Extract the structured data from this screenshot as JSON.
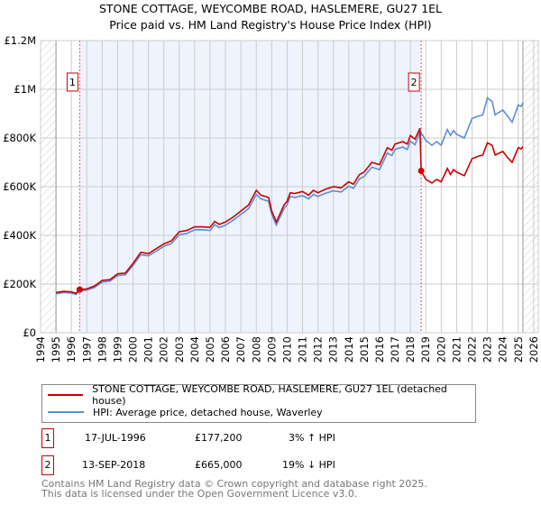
{
  "title_line1": "STONE COTTAGE, WEYCOMBE ROAD, HASLEMERE, GU27 1EL",
  "title_line2": "Price paid vs. HM Land Registry's House Price Index (HPI)",
  "colors": {
    "property": "#cc0000",
    "hpi": "#5b8fd4",
    "shade": "#eef3fd"
  },
  "legend": {
    "property": "STONE COTTAGE, WEYCOMBE ROAD, HASLEMERE, GU27 1EL (detached house)",
    "hpi": "HPI: Average price, detached house, Waverley"
  },
  "sales": [
    {
      "id": "1",
      "date": "17-JUL-1996",
      "price": "£177,200",
      "hpi_diff": "3% ↑ HPI"
    },
    {
      "id": "2",
      "date": "13-SEP-2018",
      "price": "£665,000",
      "hpi_diff": "19% ↓ HPI"
    }
  ],
  "footer": {
    "line1": "Contains HM Land Registry data © Crown copyright and database right 2025.",
    "line2": "This data is licensed under the Open Government Licence v3.0."
  },
  "chart_data": {
    "type": "line",
    "xlim": [
      1994,
      2026.3
    ],
    "ylim": [
      0,
      1200000
    ],
    "x_ticks": [
      "1994",
      "1995",
      "1996",
      "1997",
      "1998",
      "1999",
      "2000",
      "2001",
      "2002",
      "2003",
      "2004",
      "2005",
      "2006",
      "2007",
      "2008",
      "2009",
      "2010",
      "2011",
      "2012",
      "2013",
      "2014",
      "2015",
      "2016",
      "2017",
      "2018",
      "2019",
      "2020",
      "2021",
      "2022",
      "2023",
      "2024",
      "2025",
      "2026"
    ],
    "y_ticks": [
      {
        "v": 0,
        "label": "£0"
      },
      {
        "v": 200000,
        "label": "£200K"
      },
      {
        "v": 400000,
        "label": "£400K"
      },
      {
        "v": 600000,
        "label": "£600K"
      },
      {
        "v": 800000,
        "label": "£800K"
      },
      {
        "v": 1000000,
        "label": "£1M"
      },
      {
        "v": 1200000,
        "label": "£1.2M"
      }
    ],
    "data_range": [
      1995.0,
      2025.3
    ],
    "shaded_range": [
      1996.54,
      2018.7
    ],
    "series": [
      {
        "name": "property",
        "points": [
          [
            1995.0,
            165000
          ],
          [
            1995.5,
            170000
          ],
          [
            1996.0,
            168000
          ],
          [
            1996.3,
            162000
          ],
          [
            1996.54,
            177200
          ],
          [
            1997.0,
            180000
          ],
          [
            1997.5,
            192000
          ],
          [
            1998.0,
            215000
          ],
          [
            1998.5,
            218000
          ],
          [
            1999.0,
            242000
          ],
          [
            1999.5,
            245000
          ],
          [
            2000.0,
            285000
          ],
          [
            2000.5,
            330000
          ],
          [
            2001.0,
            325000
          ],
          [
            2001.5,
            345000
          ],
          [
            2002.0,
            365000
          ],
          [
            2002.5,
            378000
          ],
          [
            2003.0,
            415000
          ],
          [
            2003.5,
            420000
          ],
          [
            2004.0,
            435000
          ],
          [
            2004.5,
            435000
          ],
          [
            2005.0,
            433000
          ],
          [
            2005.3,
            457000
          ],
          [
            2005.6,
            445000
          ],
          [
            2006.0,
            455000
          ],
          [
            2006.5,
            475000
          ],
          [
            2007.0,
            500000
          ],
          [
            2007.5,
            525000
          ],
          [
            2008.0,
            585000
          ],
          [
            2008.3,
            565000
          ],
          [
            2008.8,
            555000
          ],
          [
            2009.0,
            500000
          ],
          [
            2009.3,
            455000
          ],
          [
            2009.8,
            525000
          ],
          [
            2010.0,
            540000
          ],
          [
            2010.2,
            575000
          ],
          [
            2010.5,
            572000
          ],
          [
            2011.0,
            580000
          ],
          [
            2011.4,
            565000
          ],
          [
            2011.7,
            585000
          ],
          [
            2012.0,
            575000
          ],
          [
            2012.5,
            590000
          ],
          [
            2013.0,
            600000
          ],
          [
            2013.5,
            595000
          ],
          [
            2014.0,
            620000
          ],
          [
            2014.3,
            610000
          ],
          [
            2014.7,
            650000
          ],
          [
            2015.0,
            660000
          ],
          [
            2015.5,
            700000
          ],
          [
            2016.0,
            690000
          ],
          [
            2016.5,
            760000
          ],
          [
            2016.8,
            750000
          ],
          [
            2017.0,
            775000
          ],
          [
            2017.5,
            785000
          ],
          [
            2017.8,
            775000
          ],
          [
            2018.0,
            810000
          ],
          [
            2018.3,
            795000
          ],
          [
            2018.62,
            840000
          ],
          [
            2018.7,
            665000
          ],
          [
            2019.0,
            630000
          ],
          [
            2019.4,
            615000
          ],
          [
            2019.7,
            630000
          ],
          [
            2020.0,
            620000
          ],
          [
            2020.4,
            675000
          ],
          [
            2020.6,
            650000
          ],
          [
            2020.8,
            670000
          ],
          [
            2021.0,
            660000
          ],
          [
            2021.5,
            645000
          ],
          [
            2022.0,
            715000
          ],
          [
            2022.4,
            725000
          ],
          [
            2022.7,
            730000
          ],
          [
            2023.0,
            780000
          ],
          [
            2023.3,
            770000
          ],
          [
            2023.5,
            730000
          ],
          [
            2024.0,
            745000
          ],
          [
            2024.3,
            720000
          ],
          [
            2024.6,
            700000
          ],
          [
            2025.0,
            760000
          ],
          [
            2025.2,
            755000
          ],
          [
            2025.3,
            765000
          ]
        ]
      },
      {
        "name": "hpi",
        "points": [
          [
            1995.0,
            160000
          ],
          [
            1995.5,
            165000
          ],
          [
            1996.0,
            163000
          ],
          [
            1996.3,
            157000
          ],
          [
            1996.54,
            172000
          ],
          [
            1997.0,
            175000
          ],
          [
            1997.5,
            186000
          ],
          [
            1998.0,
            208000
          ],
          [
            1998.5,
            212000
          ],
          [
            1999.0,
            235000
          ],
          [
            1999.5,
            238000
          ],
          [
            2000.0,
            277000
          ],
          [
            2000.5,
            320000
          ],
          [
            2001.0,
            316000
          ],
          [
            2001.5,
            335000
          ],
          [
            2002.0,
            355000
          ],
          [
            2002.5,
            367000
          ],
          [
            2003.0,
            403000
          ],
          [
            2003.5,
            408000
          ],
          [
            2004.0,
            423000
          ],
          [
            2004.5,
            423000
          ],
          [
            2005.0,
            420000
          ],
          [
            2005.3,
            444000
          ],
          [
            2005.6,
            432000
          ],
          [
            2006.0,
            442000
          ],
          [
            2006.5,
            462000
          ],
          [
            2007.0,
            486000
          ],
          [
            2007.5,
            510000
          ],
          [
            2008.0,
            568000
          ],
          [
            2008.3,
            550000
          ],
          [
            2008.8,
            540000
          ],
          [
            2009.0,
            486000
          ],
          [
            2009.3,
            442000
          ],
          [
            2009.8,
            510000
          ],
          [
            2010.0,
            525000
          ],
          [
            2010.2,
            560000
          ],
          [
            2010.5,
            556000
          ],
          [
            2011.0,
            563000
          ],
          [
            2011.4,
            550000
          ],
          [
            2011.7,
            568000
          ],
          [
            2012.0,
            560000
          ],
          [
            2012.5,
            573000
          ],
          [
            2013.0,
            583000
          ],
          [
            2013.5,
            578000
          ],
          [
            2014.0,
            602000
          ],
          [
            2014.3,
            593000
          ],
          [
            2014.7,
            632000
          ],
          [
            2015.0,
            642000
          ],
          [
            2015.5,
            680000
          ],
          [
            2016.0,
            670000
          ],
          [
            2016.5,
            738000
          ],
          [
            2016.8,
            728000
          ],
          [
            2017.0,
            753000
          ],
          [
            2017.5,
            763000
          ],
          [
            2017.8,
            753000
          ],
          [
            2018.0,
            787000
          ],
          [
            2018.3,
            772000
          ],
          [
            2018.62,
            825000
          ],
          [
            2018.7,
            822000
          ],
          [
            2019.0,
            790000
          ],
          [
            2019.4,
            770000
          ],
          [
            2019.7,
            785000
          ],
          [
            2020.0,
            770000
          ],
          [
            2020.4,
            835000
          ],
          [
            2020.6,
            810000
          ],
          [
            2020.8,
            830000
          ],
          [
            2021.0,
            815000
          ],
          [
            2021.5,
            800000
          ],
          [
            2022.0,
            880000
          ],
          [
            2022.4,
            890000
          ],
          [
            2022.7,
            895000
          ],
          [
            2023.0,
            965000
          ],
          [
            2023.3,
            950000
          ],
          [
            2023.5,
            895000
          ],
          [
            2024.0,
            915000
          ],
          [
            2024.3,
            890000
          ],
          [
            2024.6,
            865000
          ],
          [
            2025.0,
            935000
          ],
          [
            2025.2,
            930000
          ],
          [
            2025.3,
            945000
          ]
        ]
      }
    ],
    "annotations": [
      {
        "label": "1",
        "x": 1996.54,
        "y": 177200
      },
      {
        "label": "2",
        "x": 2018.7,
        "y": 665000
      }
    ]
  }
}
